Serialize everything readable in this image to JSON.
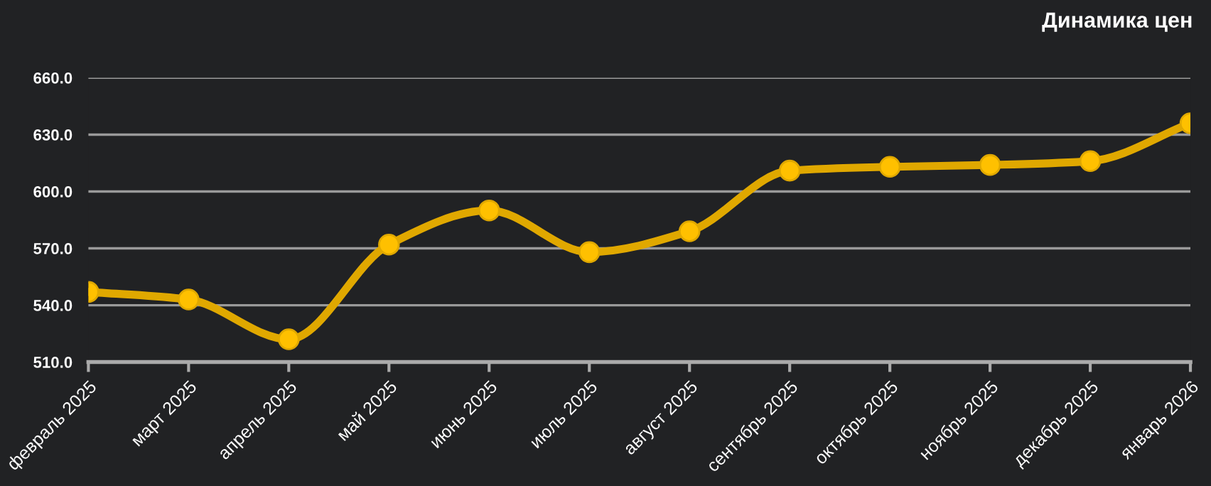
{
  "chart_data": {
    "type": "line",
    "title": "Динамика цен",
    "categories": [
      "февраль 2025",
      "март 2025",
      "апрель 2025",
      "май 2025",
      "июнь 2025",
      "июль 2025",
      "август 2025",
      "сентябрь 2025",
      "октябрь 2025",
      "ноябрь 2025",
      "декабрь 2025",
      "январь 2026"
    ],
    "series": [
      {
        "color": "#e0a800",
        "values": [
          547,
          543,
          522,
          572,
          590,
          568,
          579,
          611,
          613,
          614,
          616,
          636
        ]
      }
    ],
    "ylim": [
      510,
      660
    ],
    "yticks": [
      {
        "value": 510,
        "label": "510.0"
      },
      {
        "value": 540,
        "label": "540.0"
      },
      {
        "value": 570,
        "label": "570.0"
      },
      {
        "value": 600,
        "label": "600.0"
      },
      {
        "value": 630,
        "label": "630.0"
      },
      {
        "value": 660,
        "label": "660.0"
      }
    ],
    "grid": "y",
    "marker": "circle",
    "line_style": "solid",
    "legend": false
  }
}
